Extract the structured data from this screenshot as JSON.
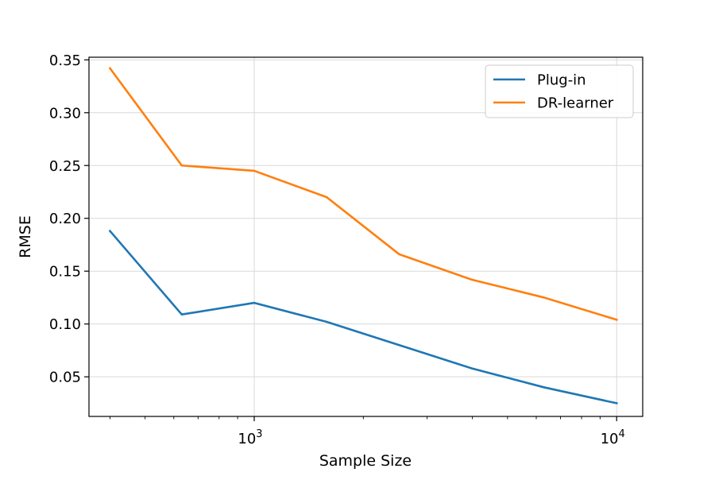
{
  "chart_data": {
    "type": "line",
    "title": "",
    "xlabel": "Sample Size",
    "ylabel": "RMSE",
    "xscale": "log",
    "xlim": [
      350,
      11800
    ],
    "ylim": [
      0.0125,
      0.3525
    ],
    "x": [
      400,
      631,
      1000,
      1585,
      2512,
      3981,
      6310,
      10000
    ],
    "series": [
      {
        "name": "Plug-in",
        "color": "#1f77b4",
        "values": [
          0.188,
          0.109,
          0.12,
          0.102,
          0.08,
          0.058,
          0.04,
          0.025
        ]
      },
      {
        "name": "DR-learner",
        "color": "#ff7f0e",
        "values": [
          0.342,
          0.25,
          0.245,
          0.22,
          0.166,
          0.142,
          0.125,
          0.104
        ]
      }
    ],
    "yticks": [
      {
        "value": 0.05,
        "label": "0.05"
      },
      {
        "value": 0.1,
        "label": "0.10"
      },
      {
        "value": 0.15,
        "label": "0.15"
      },
      {
        "value": 0.2,
        "label": "0.20"
      },
      {
        "value": 0.25,
        "label": "0.25"
      },
      {
        "value": 0.3,
        "label": "0.30"
      },
      {
        "value": 0.35,
        "label": "0.35"
      }
    ],
    "xticks_major": [
      {
        "value": 1000,
        "base": "10",
        "exp": "3"
      },
      {
        "value": 10000,
        "base": "10",
        "exp": "4"
      }
    ],
    "xticks_minor": [
      400,
      500,
      600,
      700,
      800,
      900,
      2000,
      3000,
      4000,
      5000,
      6000,
      7000,
      8000,
      9000
    ],
    "grid": true,
    "legend_position": "top-right"
  }
}
